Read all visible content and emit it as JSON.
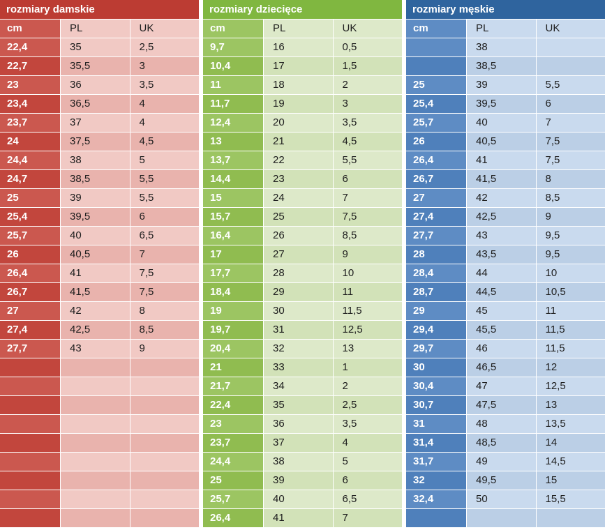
{
  "chart_data": [
    {
      "type": "table",
      "title": "rozmiary damskie",
      "columns": [
        "cm",
        "PL",
        "UK"
      ],
      "colors": {
        "title_bg": "#bc3c33",
        "cm_even": "#cb584f",
        "cm_odd": "#c2463d",
        "cell_even": "#f1c9c4",
        "cell_odd": "#e9b3ad"
      },
      "rows": [
        [
          "22,4",
          "35",
          "2,5"
        ],
        [
          "22,7",
          "35,5",
          "3"
        ],
        [
          "23",
          "36",
          "3,5"
        ],
        [
          "23,4",
          "36,5",
          "4"
        ],
        [
          "23,7",
          "37",
          "4"
        ],
        [
          "24",
          "37,5",
          "4,5"
        ],
        [
          "24,4",
          "38",
          "5"
        ],
        [
          "24,7",
          "38,5",
          "5,5"
        ],
        [
          "25",
          "39",
          "5,5"
        ],
        [
          "25,4",
          "39,5",
          "6"
        ],
        [
          "25,7",
          "40",
          "6,5"
        ],
        [
          "26",
          "40,5",
          "7"
        ],
        [
          "26,4",
          "41",
          "7,5"
        ],
        [
          "26,7",
          "41,5",
          "7,5"
        ],
        [
          "27",
          "42",
          "8"
        ],
        [
          "27,4",
          "42,5",
          "8,5"
        ],
        [
          "27,7",
          "43",
          "9"
        ],
        [
          "",
          "",
          ""
        ],
        [
          "",
          "",
          ""
        ],
        [
          "",
          "",
          ""
        ],
        [
          "",
          "",
          ""
        ],
        [
          "",
          "",
          ""
        ],
        [
          "",
          "",
          ""
        ],
        [
          "",
          "",
          ""
        ],
        [
          "",
          "",
          ""
        ],
        [
          "",
          "",
          ""
        ]
      ]
    },
    {
      "type": "table",
      "title": "rozmiary dziecięce",
      "columns": [
        "cm",
        "PL",
        "UK"
      ],
      "colors": {
        "title_bg": "#80b740",
        "cm_even": "#9cc562",
        "cm_odd": "#90bc50",
        "cell_even": "#dde9c9",
        "cell_odd": "#d2e2b8"
      },
      "rows": [
        [
          "9,7",
          "16",
          "0,5"
        ],
        [
          "10,4",
          "17",
          "1,5"
        ],
        [
          "11",
          "18",
          "2"
        ],
        [
          "11,7",
          "19",
          "3"
        ],
        [
          "12,4",
          "20",
          "3,5"
        ],
        [
          "13",
          "21",
          "4,5"
        ],
        [
          "13,7",
          "22",
          "5,5"
        ],
        [
          "14,4",
          "23",
          "6"
        ],
        [
          "15",
          "24",
          "7"
        ],
        [
          "15,7",
          "25",
          "7,5"
        ],
        [
          "16,4",
          "26",
          "8,5"
        ],
        [
          "17",
          "27",
          "9"
        ],
        [
          "17,7",
          "28",
          "10"
        ],
        [
          "18,4",
          "29",
          "11"
        ],
        [
          "19",
          "30",
          "11,5"
        ],
        [
          "19,7",
          "31",
          "12,5"
        ],
        [
          "20,4",
          "32",
          "13"
        ],
        [
          "21",
          "33",
          "1"
        ],
        [
          "21,7",
          "34",
          "2"
        ],
        [
          "22,4",
          "35",
          "2,5"
        ],
        [
          "23",
          "36",
          "3,5"
        ],
        [
          "23,7",
          "37",
          "4"
        ],
        [
          "24,4",
          "38",
          "5"
        ],
        [
          "25",
          "39",
          "6"
        ],
        [
          "25,7",
          "40",
          "6,5"
        ],
        [
          "26,4",
          "41",
          "7"
        ]
      ]
    },
    {
      "type": "table",
      "title": "rozmiary męskie",
      "columns": [
        "cm",
        "PL",
        "UK"
      ],
      "colors": {
        "title_bg": "#2f649e",
        "cm_even": "#5e8cc4",
        "cm_odd": "#4f80bb",
        "cell_even": "#c9daee",
        "cell_odd": "#bbcfe6"
      },
      "rows": [
        [
          "",
          "38",
          ""
        ],
        [
          "",
          "38,5",
          ""
        ],
        [
          "25",
          "39",
          "5,5"
        ],
        [
          "25,4",
          "39,5",
          "6"
        ],
        [
          "25,7",
          "40",
          "7"
        ],
        [
          "26",
          "40,5",
          "7,5"
        ],
        [
          "26,4",
          "41",
          "7,5"
        ],
        [
          "26,7",
          "41,5",
          "8"
        ],
        [
          "27",
          "42",
          "8,5"
        ],
        [
          "27,4",
          "42,5",
          "9"
        ],
        [
          "27,7",
          "43",
          "9,5"
        ],
        [
          "28",
          "43,5",
          "9,5"
        ],
        [
          "28,4",
          "44",
          "10"
        ],
        [
          "28,7",
          "44,5",
          "10,5"
        ],
        [
          "29",
          "45",
          "11"
        ],
        [
          "29,4",
          "45,5",
          "11,5"
        ],
        [
          "29,7",
          "46",
          "11,5"
        ],
        [
          "30",
          "46,5",
          "12"
        ],
        [
          "30,4",
          "47",
          "12,5"
        ],
        [
          "30,7",
          "47,5",
          "13"
        ],
        [
          "31",
          "48",
          "13,5"
        ],
        [
          "31,4",
          "48,5",
          "14"
        ],
        [
          "31,7",
          "49",
          "14,5"
        ],
        [
          "32",
          "49,5",
          "15"
        ],
        [
          "32,4",
          "50",
          "15,5"
        ],
        [
          "",
          "",
          ""
        ]
      ]
    }
  ]
}
